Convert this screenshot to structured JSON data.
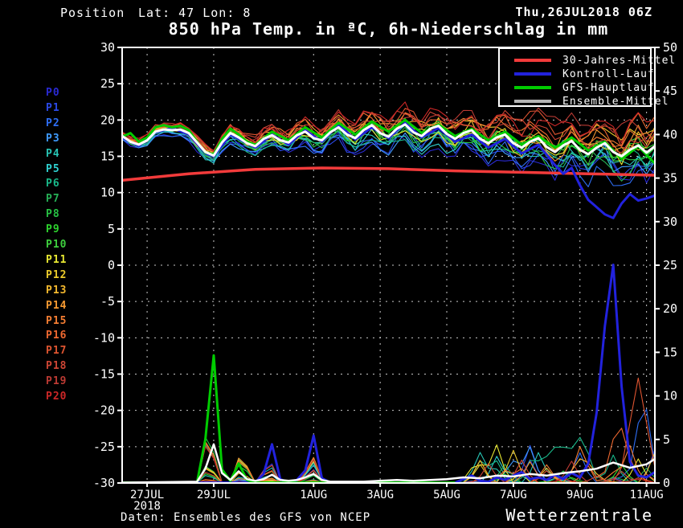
{
  "header": {
    "position_label": "Position",
    "coordinates": "Lat: 47 Lon: 8",
    "run_datetime": "Thu,26JUL2018 06Z"
  },
  "footer": {
    "source": "Daten: Ensembles des GFS von NCEP",
    "brand": "Wetterzentrale"
  },
  "chart_data": {
    "type": "line",
    "title": "850 hPa Temp. in ªC, 6h-Niederschlag in mm",
    "x_axis": {
      "start": "26JUL2018 06Z",
      "end": "11AUG2018 06Z",
      "hours_total": 384,
      "ticks": [
        {
          "label": "27JUL",
          "sub": "2018",
          "hour": 18
        },
        {
          "label": "29JUL",
          "hour": 66
        },
        {
          "label": "1AUG",
          "hour": 138
        },
        {
          "label": "3AUG",
          "hour": 186
        },
        {
          "label": "5AUG",
          "hour": 234
        },
        {
          "label": "7AUG",
          "hour": 282
        },
        {
          "label": "9AUG",
          "hour": 330
        },
        {
          "label": "11AUG",
          "hour": 378
        }
      ]
    },
    "y_left": {
      "label": "850 hPa temperature °C",
      "min": -30,
      "max": 30,
      "step": 5,
      "tick_labels": [
        "30",
        "25",
        "20",
        "15",
        "10",
        "5",
        "0",
        "-5",
        "-10",
        "-15",
        "-20",
        "-25",
        "-30"
      ]
    },
    "y_right": {
      "label": "6h precipitation mm",
      "min": 0,
      "max": 50,
      "step": 5,
      "tick_labels": [
        "50",
        "45",
        "40",
        "35",
        "30",
        "25",
        "20",
        "15",
        "10",
        "5",
        "0"
      ]
    },
    "grid": {
      "horizontal": "temp-ticks",
      "vertical": "date-ticks",
      "style": "dotted-white"
    },
    "legend": [
      {
        "label": "30-Jahres-Mittel",
        "color": "#f23b3b"
      },
      {
        "label": "Kontroll-Lauf",
        "color": "#2222dd"
      },
      {
        "label": "GFS-Hauptlauf",
        "color": "#00cc00"
      },
      {
        "label": "Ensemble-Mittel",
        "color": "#b4b4b4"
      }
    ],
    "members": [
      {
        "id": "P0",
        "color": "#2a2ad4"
      },
      {
        "id": "P1",
        "color": "#2b49e8"
      },
      {
        "id": "P2",
        "color": "#2e6ef5"
      },
      {
        "id": "P3",
        "color": "#3f9bff"
      },
      {
        "id": "P4",
        "color": "#27c4b4"
      },
      {
        "id": "P5",
        "color": "#2fd1d1"
      },
      {
        "id": "P6",
        "color": "#19b98a"
      },
      {
        "id": "P7",
        "color": "#27b156"
      },
      {
        "id": "P8",
        "color": "#27c244"
      },
      {
        "id": "P9",
        "color": "#2ed32e"
      },
      {
        "id": "P10",
        "color": "#3ecf3e"
      },
      {
        "id": "P11",
        "color": "#e8e832"
      },
      {
        "id": "P12",
        "color": "#eccb2b"
      },
      {
        "id": "P13",
        "color": "#f5b92e"
      },
      {
        "id": "P14",
        "color": "#f79a31"
      },
      {
        "id": "P15",
        "color": "#f57e33"
      },
      {
        "id": "P16",
        "color": "#ee6830"
      },
      {
        "id": "P17",
        "color": "#dd5430"
      },
      {
        "id": "P18",
        "color": "#cd4534"
      },
      {
        "id": "P19",
        "color": "#bb3a33"
      },
      {
        "id": "P20",
        "color": "#cc2727"
      }
    ],
    "series": {
      "ensemble_mean_temp": [
        [
          0,
          17.8
        ],
        [
          6,
          17.0
        ],
        [
          12,
          16.6
        ],
        [
          18,
          17.2
        ],
        [
          24,
          18.4
        ],
        [
          30,
          18.7
        ],
        [
          36,
          18.6
        ],
        [
          42,
          18.7
        ],
        [
          48,
          18.2
        ],
        [
          54,
          16.9
        ],
        [
          60,
          15.6
        ],
        [
          66,
          15.1
        ],
        [
          72,
          16.9
        ],
        [
          78,
          18.2
        ],
        [
          84,
          17.6
        ],
        [
          90,
          16.8
        ],
        [
          96,
          16.4
        ],
        [
          102,
          17.4
        ],
        [
          108,
          17.9
        ],
        [
          114,
          17.2
        ],
        [
          120,
          16.9
        ],
        [
          126,
          17.9
        ],
        [
          132,
          18.4
        ],
        [
          138,
          17.5
        ],
        [
          144,
          17.2
        ],
        [
          150,
          18.3
        ],
        [
          156,
          19.0
        ],
        [
          162,
          18.0
        ],
        [
          168,
          17.5
        ],
        [
          174,
          18.6
        ],
        [
          180,
          19.3
        ],
        [
          186,
          18.2
        ],
        [
          192,
          17.7
        ],
        [
          198,
          18.8
        ],
        [
          204,
          19.4
        ],
        [
          210,
          18.3
        ],
        [
          216,
          17.8
        ],
        [
          222,
          18.8
        ],
        [
          228,
          19.2
        ],
        [
          234,
          18.1
        ],
        [
          240,
          17.4
        ],
        [
          246,
          18.2
        ],
        [
          252,
          18.6
        ],
        [
          258,
          17.4
        ],
        [
          264,
          16.8
        ],
        [
          270,
          17.6
        ],
        [
          276,
          18.0
        ],
        [
          282,
          16.8
        ],
        [
          288,
          16.2
        ],
        [
          294,
          17.0
        ],
        [
          300,
          17.5
        ],
        [
          306,
          16.3
        ],
        [
          312,
          15.6
        ],
        [
          318,
          16.5
        ],
        [
          324,
          17.1
        ],
        [
          330,
          15.9
        ],
        [
          336,
          15.3
        ],
        [
          342,
          16.2
        ],
        [
          348,
          16.8
        ],
        [
          354,
          15.6
        ],
        [
          360,
          15.0
        ],
        [
          366,
          15.9
        ],
        [
          372,
          16.5
        ],
        [
          378,
          15.5
        ],
        [
          384,
          16.4
        ]
      ],
      "ensemble_spread": [
        [
          0,
          0.5
        ],
        [
          24,
          0.7
        ],
        [
          48,
          0.9
        ],
        [
          72,
          1.1
        ],
        [
          96,
          1.4
        ],
        [
          120,
          1.6
        ],
        [
          144,
          1.8
        ],
        [
          168,
          2.0
        ],
        [
          192,
          2.2
        ],
        [
          216,
          2.4
        ],
        [
          240,
          2.6
        ],
        [
          264,
          2.8
        ],
        [
          288,
          3.0
        ],
        [
          312,
          3.2
        ],
        [
          336,
          3.4
        ],
        [
          360,
          3.6
        ],
        [
          384,
          3.8
        ]
      ],
      "climate_mean_temp": [
        [
          0,
          11.7
        ],
        [
          48,
          12.6
        ],
        [
          96,
          13.2
        ],
        [
          144,
          13.4
        ],
        [
          192,
          13.3
        ],
        [
          240,
          13.0
        ],
        [
          288,
          12.8
        ],
        [
          336,
          12.6
        ],
        [
          384,
          12.4
        ]
      ],
      "control_temp": [
        [
          0,
          17.6
        ],
        [
          12,
          16.4
        ],
        [
          24,
          18.3
        ],
        [
          36,
          18.9
        ],
        [
          48,
          18.0
        ],
        [
          60,
          15.4
        ],
        [
          66,
          15.0
        ],
        [
          78,
          18.0
        ],
        [
          90,
          16.8
        ],
        [
          96,
          16.2
        ],
        [
          108,
          18.0
        ],
        [
          120,
          16.6
        ],
        [
          132,
          18.6
        ],
        [
          144,
          17.0
        ],
        [
          156,
          19.4
        ],
        [
          168,
          17.3
        ],
        [
          180,
          19.0
        ],
        [
          192,
          17.5
        ],
        [
          204,
          19.6
        ],
        [
          216,
          17.6
        ],
        [
          228,
          18.9
        ],
        [
          240,
          17.0
        ],
        [
          252,
          18.0
        ],
        [
          264,
          16.2
        ],
        [
          276,
          17.4
        ],
        [
          288,
          15.4
        ],
        [
          300,
          16.6
        ],
        [
          312,
          13.8
        ],
        [
          318,
          12.6
        ],
        [
          324,
          13.4
        ],
        [
          330,
          11.0
        ],
        [
          336,
          9.0
        ],
        [
          342,
          8.0
        ],
        [
          348,
          7.0
        ],
        [
          354,
          6.5
        ],
        [
          360,
          8.5
        ],
        [
          366,
          9.8
        ],
        [
          372,
          8.9
        ],
        [
          378,
          9.2
        ],
        [
          384,
          9.6
        ]
      ],
      "gfs_temp": [
        [
          0,
          17.7
        ],
        [
          6,
          18.2
        ],
        [
          12,
          17.0
        ],
        [
          18,
          17.6
        ],
        [
          24,
          19.0
        ],
        [
          30,
          19.3
        ],
        [
          36,
          19.0
        ],
        [
          42,
          19.2
        ],
        [
          48,
          18.6
        ],
        [
          54,
          17.0
        ],
        [
          60,
          15.5
        ],
        [
          66,
          15.3
        ],
        [
          72,
          17.4
        ],
        [
          78,
          18.8
        ],
        [
          84,
          18.0
        ],
        [
          90,
          17.0
        ],
        [
          96,
          16.6
        ],
        [
          108,
          18.4
        ],
        [
          120,
          17.2
        ],
        [
          132,
          19.0
        ],
        [
          144,
          17.6
        ],
        [
          156,
          19.6
        ],
        [
          168,
          18.0
        ],
        [
          180,
          19.8
        ],
        [
          192,
          18.4
        ],
        [
          204,
          20.0
        ],
        [
          216,
          18.2
        ],
        [
          228,
          19.4
        ],
        [
          240,
          17.8
        ],
        [
          252,
          18.8
        ],
        [
          264,
          17.2
        ],
        [
          276,
          18.4
        ],
        [
          288,
          16.6
        ],
        [
          300,
          17.8
        ],
        [
          312,
          16.2
        ],
        [
          324,
          17.6
        ],
        [
          336,
          15.8
        ],
        [
          348,
          17.0
        ],
        [
          360,
          14.6
        ],
        [
          372,
          16.4
        ],
        [
          384,
          14.0
        ]
      ],
      "gfs_precip": [
        [
          0,
          0
        ],
        [
          54,
          0
        ],
        [
          60,
          5.0
        ],
        [
          66,
          14.6
        ],
        [
          72,
          1.5
        ],
        [
          78,
          0.2
        ],
        [
          84,
          2.2
        ],
        [
          90,
          0.3
        ],
        [
          96,
          0
        ],
        [
          240,
          0
        ]
      ],
      "control_precip": [
        [
          0,
          0
        ],
        [
          96,
          0
        ],
        [
          102,
          1.0
        ],
        [
          108,
          4.4
        ],
        [
          114,
          0.4
        ],
        [
          120,
          0
        ],
        [
          126,
          0.3
        ],
        [
          132,
          1.4
        ],
        [
          138,
          5.4
        ],
        [
          144,
          0.5
        ],
        [
          150,
          0
        ],
        [
          240,
          0
        ],
        [
          246,
          0.4
        ],
        [
          252,
          0.8
        ],
        [
          258,
          0.2
        ],
        [
          264,
          0.1
        ],
        [
          270,
          0.6
        ],
        [
          276,
          0.3
        ],
        [
          282,
          0.8
        ],
        [
          288,
          1.2
        ],
        [
          294,
          0.4
        ],
        [
          300,
          0.6
        ],
        [
          306,
          0.3
        ],
        [
          312,
          0.9
        ],
        [
          318,
          0.4
        ],
        [
          324,
          1.1
        ],
        [
          330,
          0.6
        ],
        [
          336,
          2.2
        ],
        [
          342,
          8.0
        ],
        [
          348,
          18.0
        ],
        [
          354,
          25.0
        ],
        [
          360,
          11.0
        ],
        [
          366,
          2.4
        ],
        [
          372,
          0.8
        ],
        [
          378,
          0.6
        ],
        [
          384,
          1.2
        ]
      ],
      "ensemble_mean_precip": [
        [
          0,
          0
        ],
        [
          54,
          0.1
        ],
        [
          60,
          1.6
        ],
        [
          66,
          4.4
        ],
        [
          72,
          1.1
        ],
        [
          78,
          0.3
        ],
        [
          84,
          1.3
        ],
        [
          90,
          0.4
        ],
        [
          96,
          0.2
        ],
        [
          102,
          0.4
        ],
        [
          108,
          0.9
        ],
        [
          114,
          0.3
        ],
        [
          120,
          0.2
        ],
        [
          126,
          0.3
        ],
        [
          132,
          0.6
        ],
        [
          138,
          1.0
        ],
        [
          144,
          0.3
        ],
        [
          150,
          0.1
        ],
        [
          162,
          0.1
        ],
        [
          174,
          0.1
        ],
        [
          186,
          0.2
        ],
        [
          198,
          0.3
        ],
        [
          210,
          0.2
        ],
        [
          222,
          0.3
        ],
        [
          234,
          0.4
        ],
        [
          246,
          0.6
        ],
        [
          258,
          0.5
        ],
        [
          270,
          0.8
        ],
        [
          282,
          0.7
        ],
        [
          294,
          1.0
        ],
        [
          306,
          0.8
        ],
        [
          318,
          1.1
        ],
        [
          330,
          1.3
        ],
        [
          342,
          1.6
        ],
        [
          354,
          2.3
        ],
        [
          366,
          1.7
        ],
        [
          378,
          2.1
        ],
        [
          384,
          2.7
        ]
      ],
      "member_precip_events": [
        {
          "hour": 62,
          "width": 8,
          "max": 8.0
        },
        {
          "hour": 86,
          "width": 8,
          "max": 4.0
        },
        {
          "hour": 106,
          "width": 8,
          "max": 3.0
        },
        {
          "hour": 137,
          "width": 8,
          "max": 3.5
        }
      ],
      "member_precip_late": {
        "start": 252,
        "prob": 0.18,
        "max": 4.5,
        "width": 9
      },
      "member_precip_special": [
        {
          "member": 17,
          "hour": 372,
          "width": 14,
          "peak": 12.0
        },
        {
          "member": 16,
          "hour": 358,
          "width": 12,
          "peak": 7.5
        },
        {
          "member": 2,
          "hour": 376,
          "width": 10,
          "peak": 10.5
        },
        {
          "member": 6,
          "hour": 315,
          "width": 26,
          "peak": 4.6
        },
        {
          "member": 13,
          "hour": 332,
          "width": 14,
          "peak": 3.2
        }
      ]
    }
  }
}
